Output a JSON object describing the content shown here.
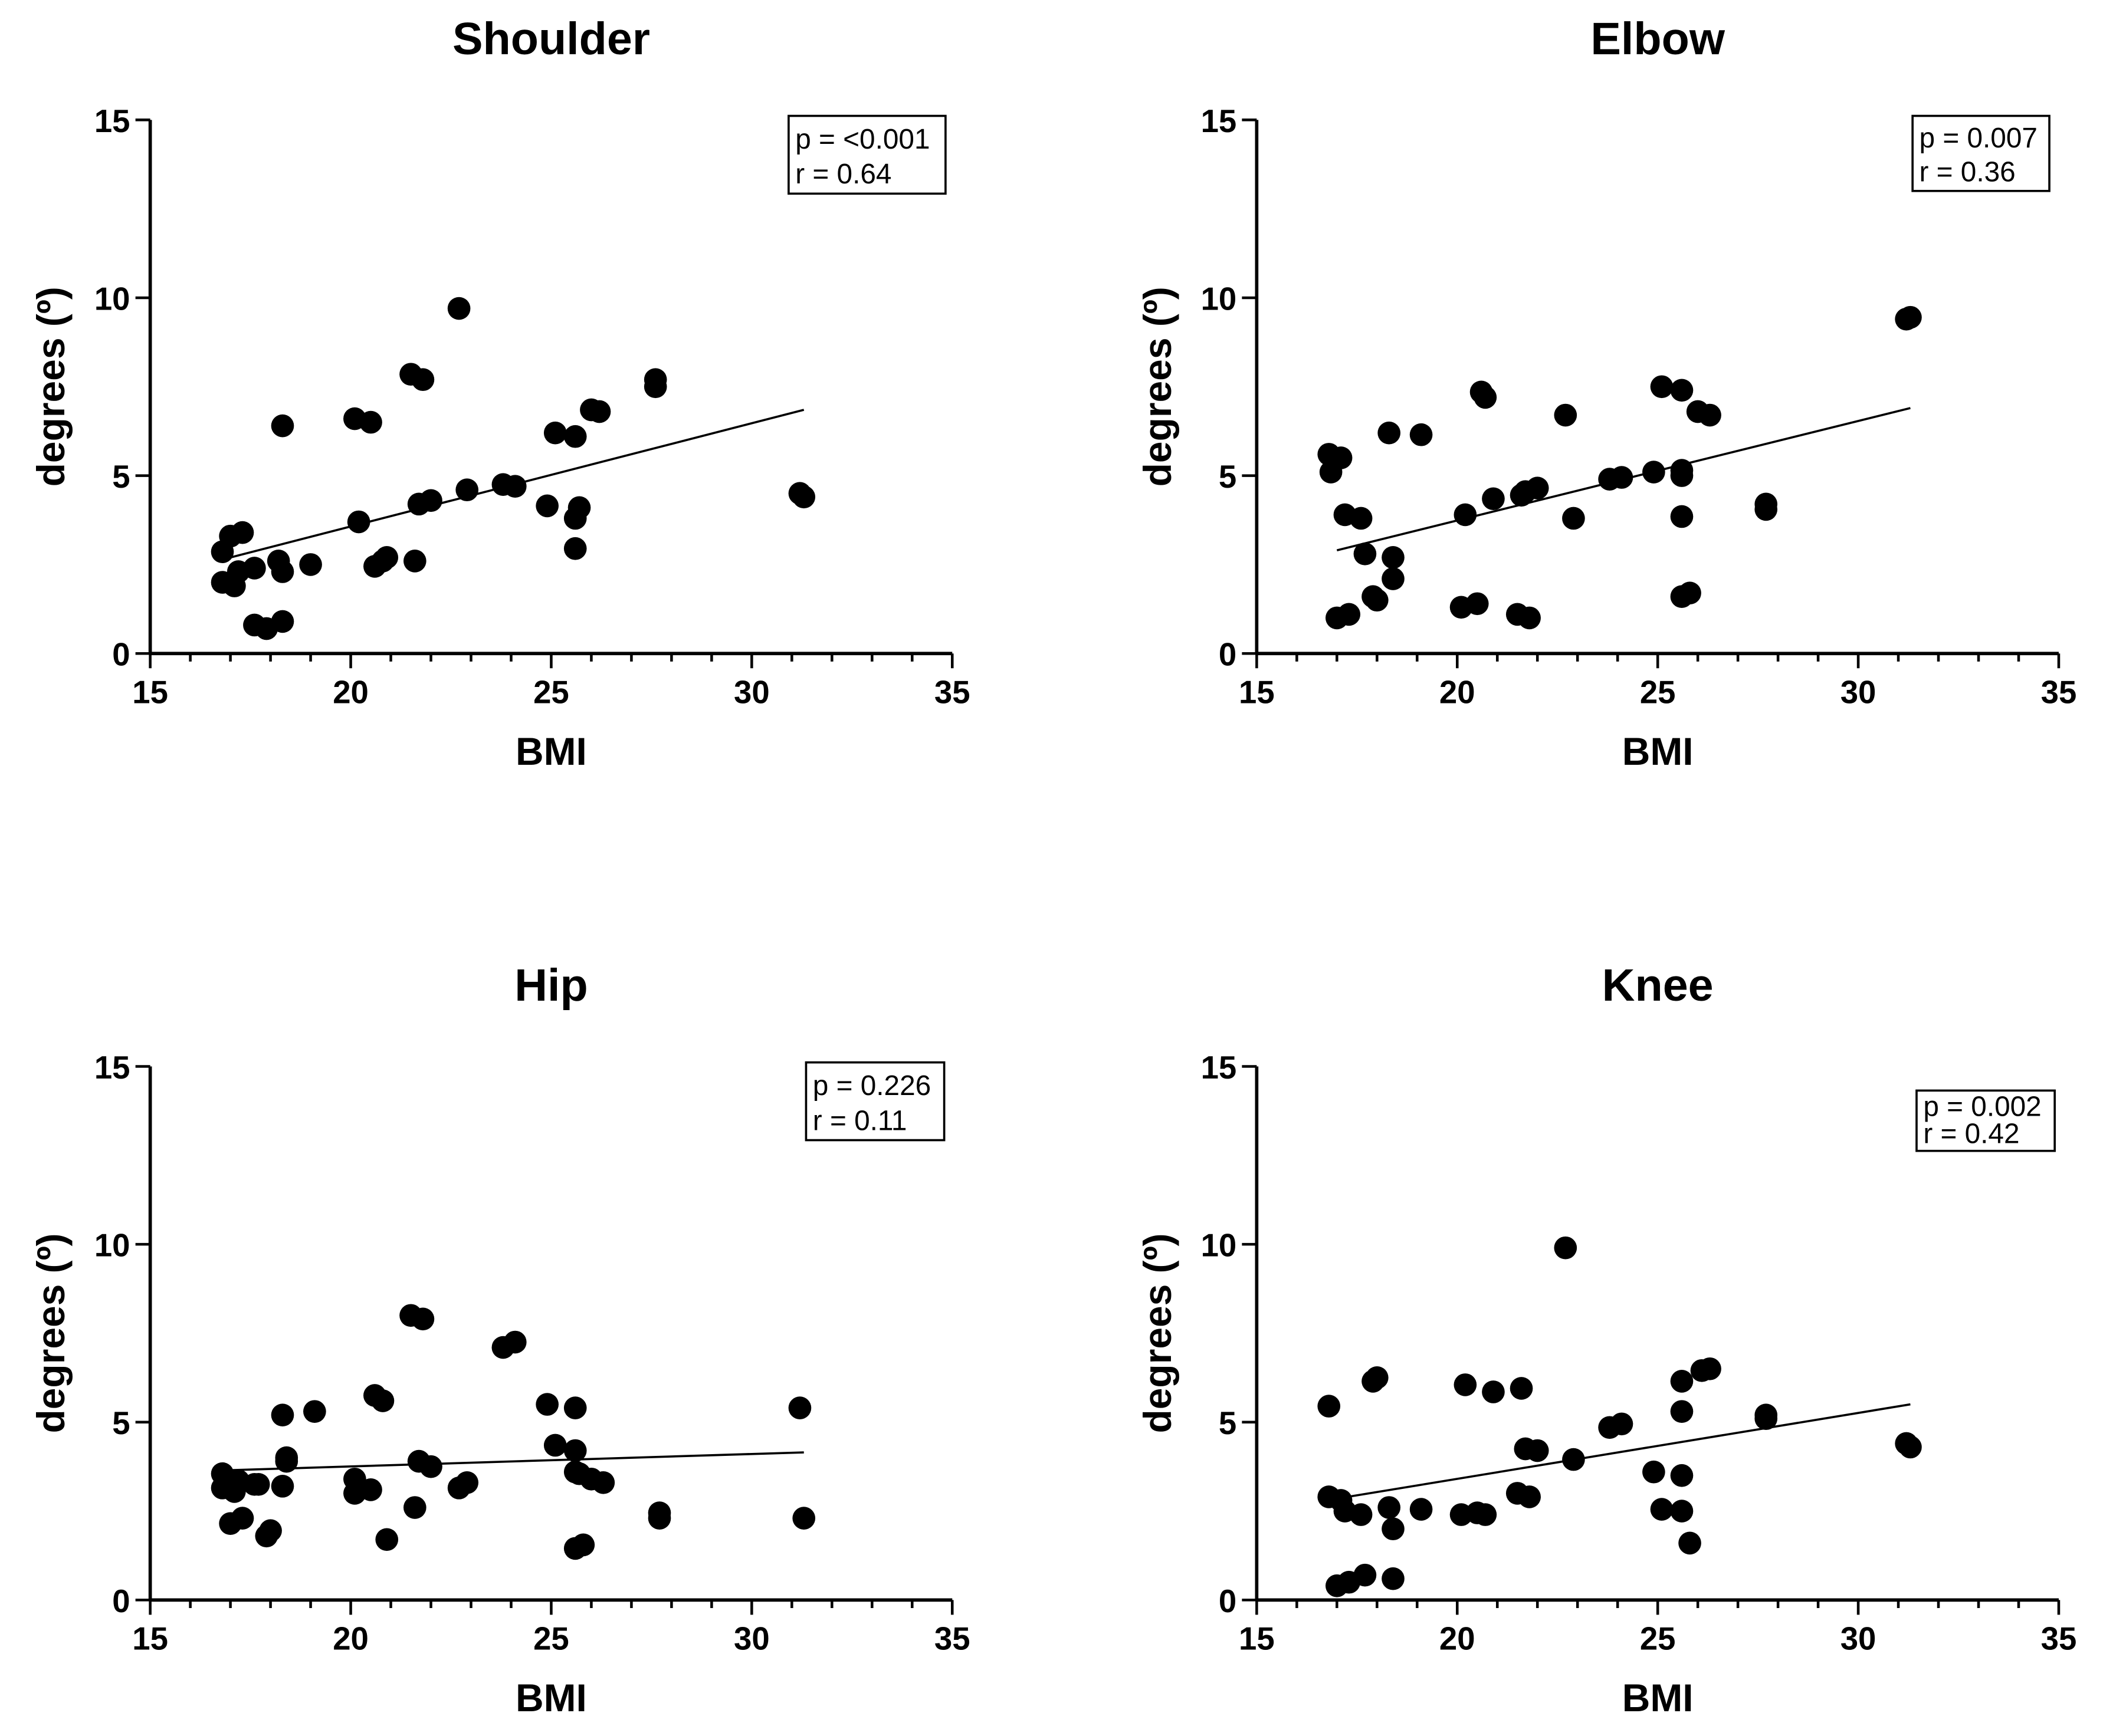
{
  "chart_data": [
    {
      "type": "scatter",
      "title": "Shoulder",
      "xlabel": "BMI",
      "ylabel": "degrees (º)",
      "xlim": [
        15,
        35
      ],
      "ylim": [
        0,
        15
      ],
      "xticks": [
        "15",
        "20",
        "25",
        "30",
        "35"
      ],
      "yticks": [
        "0",
        "5",
        "10",
        "15"
      ],
      "stats": {
        "p": "p = <0.001",
        "r": "r = 0.64"
      },
      "fit": {
        "x": [
          17,
          31.3
        ],
        "y": [
          2.7,
          6.85
        ]
      },
      "points": [
        [
          16.8,
          2.86
        ],
        [
          17.0,
          3.3
        ],
        [
          17.3,
          3.4
        ],
        [
          16.8,
          2.0
        ],
        [
          17.1,
          1.9
        ],
        [
          17.2,
          2.3
        ],
        [
          17.6,
          2.4
        ],
        [
          17.6,
          0.8
        ],
        [
          17.9,
          0.7
        ],
        [
          18.3,
          0.9
        ],
        [
          18.2,
          2.6
        ],
        [
          18.3,
          2.3
        ],
        [
          18.3,
          6.4
        ],
        [
          19.0,
          2.5
        ],
        [
          20.1,
          6.6
        ],
        [
          20.5,
          6.5
        ],
        [
          20.2,
          3.7
        ],
        [
          20.6,
          2.45
        ],
        [
          20.8,
          2.6
        ],
        [
          20.9,
          2.7
        ],
        [
          21.6,
          2.6
        ],
        [
          21.5,
          7.85
        ],
        [
          21.8,
          7.7
        ],
        [
          21.7,
          4.2
        ],
        [
          22.0,
          4.3
        ],
        [
          22.7,
          9.7
        ],
        [
          22.9,
          4.6
        ],
        [
          23.8,
          4.75
        ],
        [
          24.1,
          4.7
        ],
        [
          24.9,
          4.15
        ],
        [
          25.1,
          6.2
        ],
        [
          25.6,
          6.1
        ],
        [
          25.6,
          3.8
        ],
        [
          25.6,
          2.95
        ],
        [
          25.7,
          4.1
        ],
        [
          26.0,
          6.85
        ],
        [
          26.2,
          6.8
        ],
        [
          27.6,
          7.5
        ],
        [
          27.6,
          7.7
        ],
        [
          31.2,
          4.5
        ],
        [
          31.3,
          4.4
        ]
      ]
    },
    {
      "type": "scatter",
      "title": "Elbow",
      "xlabel": "BMI",
      "ylabel": "degrees (º)",
      "xlim": [
        15,
        35
      ],
      "ylim": [
        0,
        15
      ],
      "xticks": [
        "15",
        "20",
        "25",
        "30",
        "35"
      ],
      "yticks": [
        "0",
        "5",
        "10",
        "15"
      ],
      "stats": {
        "p": "p = 0.007",
        "r": "r = 0.36"
      },
      "fit": {
        "x": [
          17,
          31.3
        ],
        "y": [
          2.9,
          6.9
        ]
      },
      "points": [
        [
          16.8,
          5.6
        ],
        [
          16.85,
          5.1
        ],
        [
          17.1,
          5.5
        ],
        [
          17.2,
          3.9
        ],
        [
          17.6,
          3.8
        ],
        [
          17.7,
          2.8
        ],
        [
          17.0,
          1.0
        ],
        [
          17.3,
          1.1
        ],
        [
          17.9,
          1.6
        ],
        [
          18.0,
          1.5
        ],
        [
          18.4,
          2.7
        ],
        [
          18.4,
          2.1
        ],
        [
          18.3,
          6.2
        ],
        [
          19.1,
          6.15
        ],
        [
          20.2,
          3.9
        ],
        [
          20.1,
          1.3
        ],
        [
          20.5,
          1.4
        ],
        [
          20.6,
          7.35
        ],
        [
          20.7,
          7.2
        ],
        [
          20.9,
          4.35
        ],
        [
          21.5,
          1.1
        ],
        [
          21.8,
          1.0
        ],
        [
          21.6,
          4.45
        ],
        [
          21.7,
          4.55
        ],
        [
          22.0,
          4.65
        ],
        [
          22.7,
          6.7
        ],
        [
          22.9,
          3.8
        ],
        [
          23.8,
          4.9
        ],
        [
          24.1,
          4.95
        ],
        [
          24.9,
          5.1
        ],
        [
          25.1,
          7.5
        ],
        [
          25.6,
          7.4
        ],
        [
          25.6,
          5.15
        ],
        [
          25.6,
          5.0
        ],
        [
          25.6,
          3.85
        ],
        [
          25.6,
          1.6
        ],
        [
          25.8,
          1.7
        ],
        [
          26.0,
          6.8
        ],
        [
          26.3,
          6.7
        ],
        [
          27.7,
          4.2
        ],
        [
          27.7,
          4.05
        ],
        [
          31.2,
          9.4
        ],
        [
          31.3,
          9.45
        ]
      ]
    },
    {
      "type": "scatter",
      "title": "Hip",
      "xlabel": "BMI",
      "ylabel": "degrees (º)",
      "xlim": [
        15,
        35
      ],
      "ylim": [
        0,
        15
      ],
      "xticks": [
        "15",
        "20",
        "25",
        "30",
        "35"
      ],
      "yticks": [
        "0",
        "5",
        "10",
        "15"
      ],
      "stats": {
        "p": "p = 0.226",
        "r": "r = 0.11"
      },
      "fit": {
        "x": [
          17,
          31.3
        ],
        "y": [
          3.65,
          4.15
        ]
      },
      "points": [
        [
          16.8,
          3.55
        ],
        [
          16.8,
          3.15
        ],
        [
          17.0,
          3.2
        ],
        [
          17.2,
          3.35
        ],
        [
          17.1,
          3.05
        ],
        [
          17.0,
          2.15
        ],
        [
          17.3,
          2.3
        ],
        [
          17.6,
          3.25
        ],
        [
          17.7,
          3.25
        ],
        [
          17.9,
          1.8
        ],
        [
          18.0,
          1.95
        ],
        [
          18.3,
          5.2
        ],
        [
          18.4,
          4.0
        ],
        [
          18.4,
          3.9
        ],
        [
          18.3,
          3.2
        ],
        [
          19.1,
          5.3
        ],
        [
          20.1,
          3.4
        ],
        [
          20.1,
          3.0
        ],
        [
          20.5,
          3.1
        ],
        [
          20.6,
          5.75
        ],
        [
          20.8,
          5.6
        ],
        [
          20.9,
          1.7
        ],
        [
          21.6,
          2.6
        ],
        [
          21.5,
          8.0
        ],
        [
          21.8,
          7.9
        ],
        [
          21.7,
          3.9
        ],
        [
          22.0,
          3.75
        ],
        [
          22.7,
          3.15
        ],
        [
          22.9,
          3.3
        ],
        [
          23.8,
          7.1
        ],
        [
          24.1,
          7.25
        ],
        [
          24.9,
          5.5
        ],
        [
          25.1,
          4.35
        ],
        [
          25.6,
          5.4
        ],
        [
          25.6,
          4.2
        ],
        [
          25.6,
          3.6
        ],
        [
          25.7,
          3.55
        ],
        [
          25.6,
          1.45
        ],
        [
          25.8,
          1.55
        ],
        [
          26.0,
          3.4
        ],
        [
          26.3,
          3.3
        ],
        [
          27.7,
          2.45
        ],
        [
          27.7,
          2.3
        ],
        [
          31.2,
          5.4
        ],
        [
          31.3,
          2.3
        ]
      ]
    },
    {
      "type": "scatter",
      "title": "Knee",
      "xlabel": "BMI",
      "ylabel": "degrees (º)",
      "xlim": [
        15,
        35
      ],
      "ylim": [
        0,
        15
      ],
      "xticks": [
        "15",
        "20",
        "25",
        "30",
        "35"
      ],
      "yticks": [
        "0",
        "5",
        "10",
        "15"
      ],
      "stats": {
        "p": "p = 0.002",
        "r": "r = 0.42"
      },
      "fit": {
        "x": [
          17,
          31.3
        ],
        "y": [
          2.85,
          5.5
        ]
      },
      "points": [
        [
          16.8,
          5.45
        ],
        [
          16.8,
          2.9
        ],
        [
          17.1,
          2.8
        ],
        [
          17.2,
          2.5
        ],
        [
          17.6,
          2.4
        ],
        [
          17.0,
          0.4
        ],
        [
          17.3,
          0.5
        ],
        [
          17.7,
          0.7
        ],
        [
          17.9,
          6.15
        ],
        [
          18.0,
          6.25
        ],
        [
          18.3,
          2.6
        ],
        [
          18.4,
          2.0
        ],
        [
          18.4,
          0.6
        ],
        [
          19.1,
          2.55
        ],
        [
          20.2,
          6.05
        ],
        [
          20.1,
          2.4
        ],
        [
          20.5,
          2.45
        ],
        [
          20.7,
          2.4
        ],
        [
          20.9,
          5.85
        ],
        [
          21.6,
          5.95
        ],
        [
          21.5,
          3.0
        ],
        [
          21.8,
          2.9
        ],
        [
          21.7,
          4.25
        ],
        [
          22.0,
          4.2
        ],
        [
          22.7,
          9.9
        ],
        [
          22.9,
          3.95
        ],
        [
          23.8,
          4.85
        ],
        [
          24.1,
          4.95
        ],
        [
          24.9,
          3.6
        ],
        [
          25.1,
          2.55
        ],
        [
          25.6,
          6.15
        ],
        [
          25.6,
          5.3
        ],
        [
          25.6,
          3.5
        ],
        [
          25.6,
          2.5
        ],
        [
          25.8,
          1.6
        ],
        [
          26.1,
          6.45
        ],
        [
          26.3,
          6.5
        ],
        [
          27.7,
          5.2
        ],
        [
          27.7,
          5.1
        ],
        [
          31.2,
          4.4
        ],
        [
          31.3,
          4.3
        ]
      ]
    }
  ]
}
